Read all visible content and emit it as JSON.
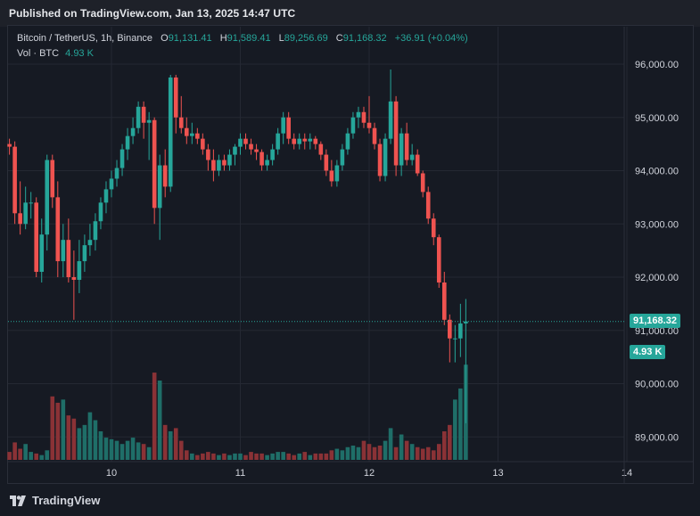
{
  "header": {
    "published": "Published on TradingView.com, Jan 13, 2025 14:47 UTC"
  },
  "legend": {
    "symbol": "Bitcoin / TetherUS, 1h, Binance",
    "o_label": "O",
    "o_value": "91,131.41",
    "h_label": "H",
    "h_value": "91,589.41",
    "l_label": "L",
    "l_value": "89,256.69",
    "c_label": "C",
    "c_value": "91,168.32",
    "change": "+36.91 (+0.04%)",
    "vol_label": "Vol · BTC",
    "vol_value": "4.93 K"
  },
  "price_tag": "91,168.32",
  "volume_tag": "4.93 K",
  "brand": "TradingView",
  "colors": {
    "up": "#26a69a",
    "down": "#ef5350",
    "up_vol": "#1f6e68",
    "down_vol": "#8a3236",
    "grid": "#242833",
    "bg": "#161a23"
  },
  "chart_data": {
    "type": "candlestick",
    "title": "Bitcoin / TetherUS, 1h, Binance",
    "y_ticks": [
      "96,000.00",
      "95,000.00",
      "94,000.00",
      "93,000.00",
      "92,000.00",
      "91,000.00",
      "90,000.00",
      "89,000.00"
    ],
    "y_tick_values": [
      96000,
      95000,
      94000,
      93000,
      92000,
      91000,
      90000,
      89000
    ],
    "x_ticks": [
      "10",
      "11",
      "12",
      "13",
      "14"
    ],
    "x_tick_hours": [
      0,
      24,
      48,
      72,
      96
    ],
    "ylim": [
      88650,
      96700
    ],
    "x_range_hours": [
      -20,
      100
    ],
    "last_close": 91168.32,
    "candles_start_hour": -19,
    "candles": [
      [
        94500,
        94600,
        94300,
        94450
      ],
      [
        94450,
        94550,
        93000,
        93200
      ],
      [
        93200,
        93800,
        92800,
        93000
      ],
      [
        93000,
        93700,
        92900,
        93400
      ],
      [
        93400,
        93600,
        93100,
        93400
      ],
      [
        93400,
        93500,
        92000,
        92100
      ],
      [
        92100,
        93100,
        91900,
        92800
      ],
      [
        92800,
        94300,
        92500,
        94200
      ],
      [
        94200,
        94300,
        93300,
        93500
      ],
      [
        93500,
        93800,
        92000,
        92300
      ],
      [
        92300,
        93000,
        92000,
        92700
      ],
      [
        92700,
        93100,
        91900,
        92000
      ],
      [
        92000,
        92500,
        91200,
        91950
      ],
      [
        91950,
        92700,
        91700,
        92300
      ],
      [
        92300,
        92800,
        92100,
        92600
      ],
      [
        92600,
        93000,
        92400,
        92700
      ],
      [
        92700,
        93200,
        92500,
        93050
      ],
      [
        93050,
        93500,
        92900,
        93400
      ],
      [
        93400,
        93800,
        93200,
        93650
      ],
      [
        93650,
        94000,
        93500,
        93850
      ],
      [
        93850,
        94200,
        93700,
        94050
      ],
      [
        94050,
        94500,
        93900,
        94400
      ],
      [
        94400,
        94800,
        94200,
        94650
      ],
      [
        94650,
        95000,
        94500,
        94800
      ],
      [
        94800,
        95300,
        94700,
        95200
      ],
      [
        95200,
        95300,
        94600,
        94900
      ],
      [
        94900,
        95100,
        94200,
        94950
      ],
      [
        94950,
        95000,
        93000,
        93300
      ],
      [
        93300,
        94300,
        92700,
        94100
      ],
      [
        94100,
        94400,
        93500,
        93700
      ],
      [
        93700,
        95800,
        93600,
        95750
      ],
      [
        95750,
        95800,
        94700,
        95000
      ],
      [
        95000,
        95400,
        94700,
        94800
      ],
      [
        94800,
        95000,
        94500,
        94650
      ],
      [
        94650,
        94900,
        94500,
        94700
      ],
      [
        94700,
        94800,
        94500,
        94600
      ],
      [
        94600,
        94700,
        94300,
        94400
      ],
      [
        94400,
        94500,
        94000,
        94200
      ],
      [
        94200,
        94400,
        93800,
        94000
      ],
      [
        94000,
        94300,
        93900,
        94200
      ],
      [
        94200,
        94300,
        94000,
        94100
      ],
      [
        94100,
        94400,
        94000,
        94300
      ],
      [
        94300,
        94500,
        94100,
        94450
      ],
      [
        94450,
        94700,
        94300,
        94600
      ],
      [
        94600,
        94700,
        94400,
        94500
      ],
      [
        94500,
        94600,
        94300,
        94400
      ],
      [
        94400,
        94500,
        94200,
        94350
      ],
      [
        94350,
        94400,
        94000,
        94100
      ],
      [
        94100,
        94300,
        94000,
        94200
      ],
      [
        94200,
        94500,
        94100,
        94400
      ],
      [
        94400,
        94800,
        94300,
        94700
      ],
      [
        94700,
        95100,
        94500,
        95000
      ],
      [
        95000,
        95100,
        94500,
        94600
      ],
      [
        94600,
        94700,
        94400,
        94500
      ],
      [
        94500,
        94700,
        94400,
        94600
      ],
      [
        94600,
        94700,
        94400,
        94550
      ],
      [
        94550,
        94700,
        94400,
        94600
      ],
      [
        94600,
        94650,
        94400,
        94500
      ],
      [
        94500,
        94550,
        94200,
        94300
      ],
      [
        94300,
        94400,
        93900,
        94000
      ],
      [
        94000,
        94200,
        93700,
        93800
      ],
      [
        93800,
        94200,
        93700,
        94100
      ],
      [
        94100,
        94500,
        94000,
        94400
      ],
      [
        94400,
        94800,
        94300,
        94700
      ],
      [
        94700,
        95100,
        94600,
        95000
      ],
      [
        95000,
        95200,
        94800,
        95100
      ],
      [
        95100,
        95200,
        94800,
        94900
      ],
      [
        94900,
        95400,
        94700,
        94800
      ],
      [
        94800,
        94900,
        94400,
        94500
      ],
      [
        94500,
        94600,
        93800,
        93900
      ],
      [
        93900,
        94700,
        93800,
        94600
      ],
      [
        94600,
        95900,
        94500,
        95300
      ],
      [
        95300,
        95400,
        93900,
        94100
      ],
      [
        94100,
        94800,
        93900,
        94700
      ],
      [
        94700,
        94900,
        94100,
        94200
      ],
      [
        94200,
        94500,
        94100,
        94300
      ],
      [
        94300,
        94400,
        93900,
        93950
      ],
      [
        93950,
        94000,
        93500,
        93600
      ],
      [
        93600,
        93700,
        93000,
        93100
      ],
      [
        93100,
        93200,
        92600,
        92750
      ],
      [
        92750,
        92800,
        91800,
        91900
      ],
      [
        91900,
        92100,
        91100,
        91200
      ],
      [
        91200,
        91300,
        90400,
        90850
      ],
      [
        90850,
        91100,
        90400,
        90850
      ],
      [
        90850,
        91500,
        90500,
        91131.41
      ],
      [
        91131.41,
        91589.41,
        89256.69,
        91168.32
      ]
    ],
    "volumes": [
      5,
      11,
      7,
      10,
      5,
      4,
      3,
      6,
      40,
      36,
      38,
      28,
      26,
      20,
      22,
      30,
      25,
      18,
      14,
      13,
      12,
      10,
      12,
      14,
      11,
      10,
      8,
      55,
      50,
      22,
      18,
      20,
      12,
      6,
      4,
      3,
      4,
      5,
      4,
      3,
      4,
      3,
      4,
      4,
      3,
      5,
      4,
      4,
      3,
      4,
      5,
      5,
      4,
      3,
      4,
      5,
      3,
      4,
      4,
      4,
      6,
      7,
      6,
      8,
      9,
      8,
      12,
      10,
      8,
      9,
      12,
      20,
      8,
      16,
      12,
      10,
      8,
      7,
      8,
      6,
      10,
      18,
      22,
      38,
      45,
      60
    ]
  }
}
